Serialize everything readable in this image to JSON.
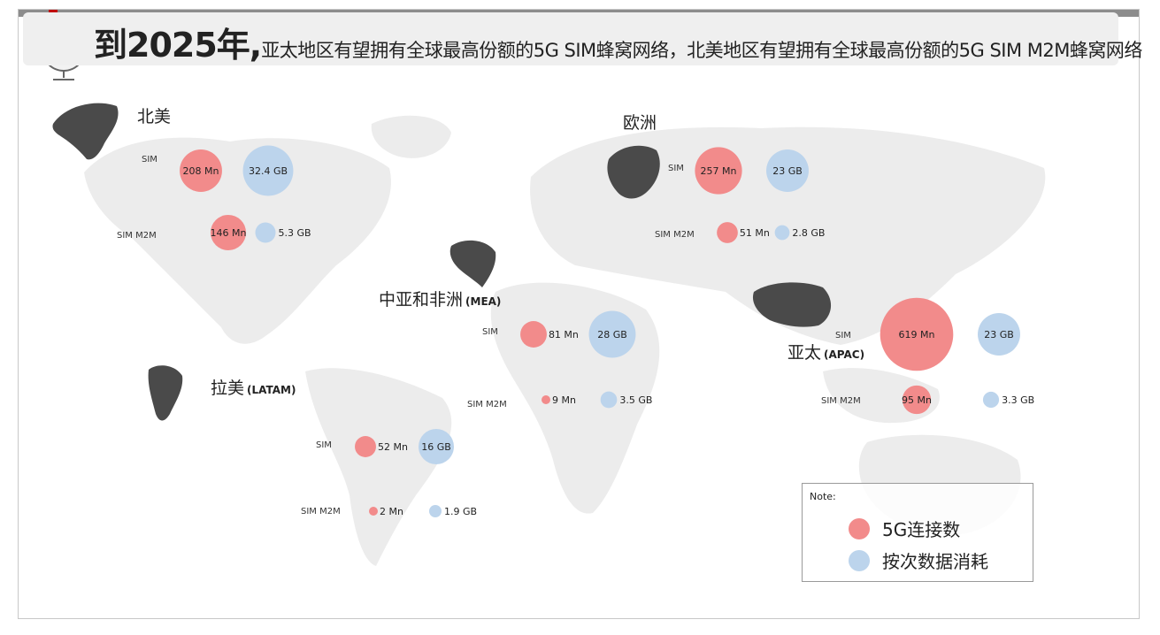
{
  "title": {
    "year_part": "到2025年,",
    "rest": "亚太地区有望拥有全球最高份额的5G SIM蜂窝网络，北美地区有望拥有全球最高份额的5G SIM M2M蜂窝网络"
  },
  "colors": {
    "connections": "#f28b8b",
    "data": "#bcd4ec",
    "continent": "#4a4a4a",
    "world_map": "#ececec"
  },
  "icons": {
    "title_icon": "globe-icon"
  },
  "legend": {
    "title": "Note:",
    "items": [
      {
        "label": "5G连接数",
        "color": "#f28b8b"
      },
      {
        "label": "按次数据消耗",
        "color": "#bcd4ec"
      }
    ]
  },
  "chart_data": {
    "type": "bubble-map",
    "metric_labels": {
      "sim": "SIM",
      "sim_m2m": "SIM M2M"
    },
    "series": [
      {
        "name": "5G连接数",
        "unit": "Mn"
      },
      {
        "name": "按次数据消耗",
        "unit": "GB"
      }
    ],
    "regions": [
      {
        "key": "na",
        "name_cn": "北美",
        "name_en": "",
        "sim": {
          "connections": 208,
          "connections_label": "208 Mn",
          "data": 32.4,
          "data_label": "32.4 GB"
        },
        "sim_m2m": {
          "connections": 146,
          "connections_label": "146 Mn",
          "data": 5.3,
          "data_label": "5.3 GB"
        }
      },
      {
        "key": "eu",
        "name_cn": "欧洲",
        "name_en": "",
        "sim": {
          "connections": 257,
          "connections_label": "257 Mn",
          "data": 23,
          "data_label": "23 GB"
        },
        "sim_m2m": {
          "connections": 51,
          "connections_label": "51 Mn",
          "data": 2.8,
          "data_label": "2.8 GB"
        }
      },
      {
        "key": "mea",
        "name_cn": "中亚和非洲",
        "name_en": "(MEA)",
        "sim": {
          "connections": 81,
          "connections_label": "81 Mn",
          "data": 28,
          "data_label": "28 GB"
        },
        "sim_m2m": {
          "connections": 9,
          "connections_label": "9 Mn",
          "data": 3.5,
          "data_label": "3.5 GB"
        }
      },
      {
        "key": "apac",
        "name_cn": "亚太",
        "name_en": "(APAC)",
        "sim": {
          "connections": 619,
          "connections_label": "619 Mn",
          "data": 23,
          "data_label": "23 GB"
        },
        "sim_m2m": {
          "connections": 95,
          "connections_label": "95 Mn",
          "data": 3.3,
          "data_label": "3.3 GB"
        }
      },
      {
        "key": "latam",
        "name_cn": "拉美",
        "name_en": "(LATAM)",
        "sim": {
          "connections": 52,
          "connections_label": "52 Mn",
          "data": 16,
          "data_label": "16 GB"
        },
        "sim_m2m": {
          "connections": 2,
          "connections_label": "2 Mn",
          "data": 1.9,
          "data_label": "1.9 GB"
        }
      }
    ]
  }
}
